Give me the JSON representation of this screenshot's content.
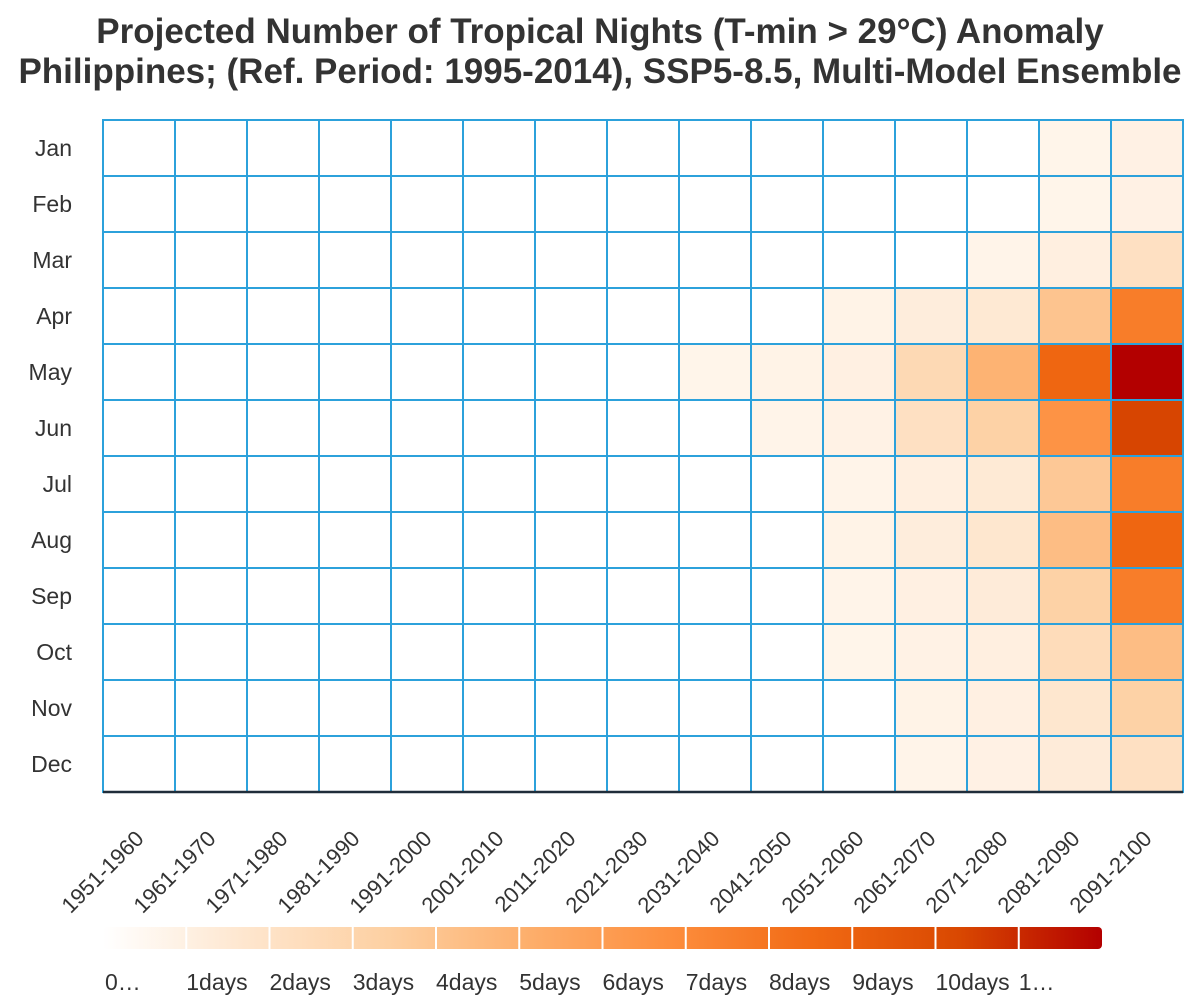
{
  "chart_data": {
    "type": "heatmap",
    "title": "Projected Number of Tropical Nights (T-min > 29°C) Anomaly",
    "subtitle": "Philippines; (Ref. Period: 1995-2014), SSP5-8.5, Multi-Model Ensemble",
    "x_categories": [
      "1951-1960",
      "1961-1970",
      "1971-1980",
      "1981-1990",
      "1991-2000",
      "2001-2010",
      "2011-2020",
      "2021-2030",
      "2031-2040",
      "2041-2050",
      "2051-2060",
      "2061-2070",
      "2071-2080",
      "2081-2090",
      "2091-2100"
    ],
    "y_categories": [
      "Jan",
      "Feb",
      "Mar",
      "Apr",
      "May",
      "Jun",
      "Jul",
      "Aug",
      "Sep",
      "Oct",
      "Nov",
      "Dec"
    ],
    "values": [
      [
        0,
        0,
        0,
        0,
        0,
        0,
        0,
        0,
        0,
        0,
        0,
        0,
        0,
        0.05,
        0.4
      ],
      [
        0,
        0,
        0,
        0,
        0,
        0,
        0,
        0,
        0,
        0,
        0,
        0,
        0,
        0.05,
        0.4
      ],
      [
        0,
        0,
        0,
        0,
        0,
        0,
        0,
        0,
        0,
        0,
        0,
        0,
        0.1,
        0.6,
        2.0
      ],
      [
        0,
        0,
        0,
        0,
        0,
        0,
        0,
        0,
        0,
        0,
        0.2,
        0.8,
        1.3,
        3.7,
        7.0
      ],
      [
        0,
        0,
        0,
        0,
        0,
        0,
        0,
        0,
        0.05,
        0.2,
        0.5,
        2.5,
        4.5,
        8.0,
        11.5
      ],
      [
        0,
        0,
        0,
        0,
        0,
        0,
        0,
        0,
        0,
        0.1,
        0.3,
        2.0,
        3.0,
        6.0,
        9.5
      ],
      [
        0,
        0,
        0,
        0,
        0,
        0,
        0,
        0,
        0,
        0,
        0.1,
        0.6,
        1.2,
        3.5,
        7.0
      ],
      [
        0,
        0,
        0,
        0,
        0,
        0,
        0,
        0,
        0,
        0,
        0.2,
        0.8,
        1.5,
        4.0,
        8.0
      ],
      [
        0,
        0,
        0,
        0,
        0,
        0,
        0,
        0,
        0,
        0,
        0.1,
        0.5,
        1.0,
        3.0,
        7.0
      ],
      [
        0,
        0,
        0,
        0,
        0,
        0,
        0,
        0,
        0,
        0,
        0.05,
        0.3,
        0.6,
        2.3,
        4.0
      ],
      [
        0,
        0,
        0,
        0,
        0,
        0,
        0,
        0,
        0,
        0,
        0,
        0.2,
        0.5,
        1.5,
        3.0
      ],
      [
        0,
        0,
        0,
        0,
        0,
        0,
        0,
        0,
        0,
        0,
        0,
        0.1,
        0.4,
        1.0,
        2.0
      ]
    ],
    "color_scale": {
      "min": 0,
      "max": 11,
      "colors": [
        "#fff5eb",
        "#fee6ce",
        "#fdd0a2",
        "#fdae6b",
        "#fd8d3c",
        "#f16913",
        "#d94801",
        "#b30000"
      ],
      "tick_labels": [
        "0…",
        "1days",
        "2days",
        "3days",
        "4days",
        "5days",
        "6days",
        "7days",
        "8days",
        "9days",
        "10days",
        "1…"
      ]
    },
    "grid": true,
    "grid_color": "#2ca1db",
    "legend_placement": "bottom"
  }
}
